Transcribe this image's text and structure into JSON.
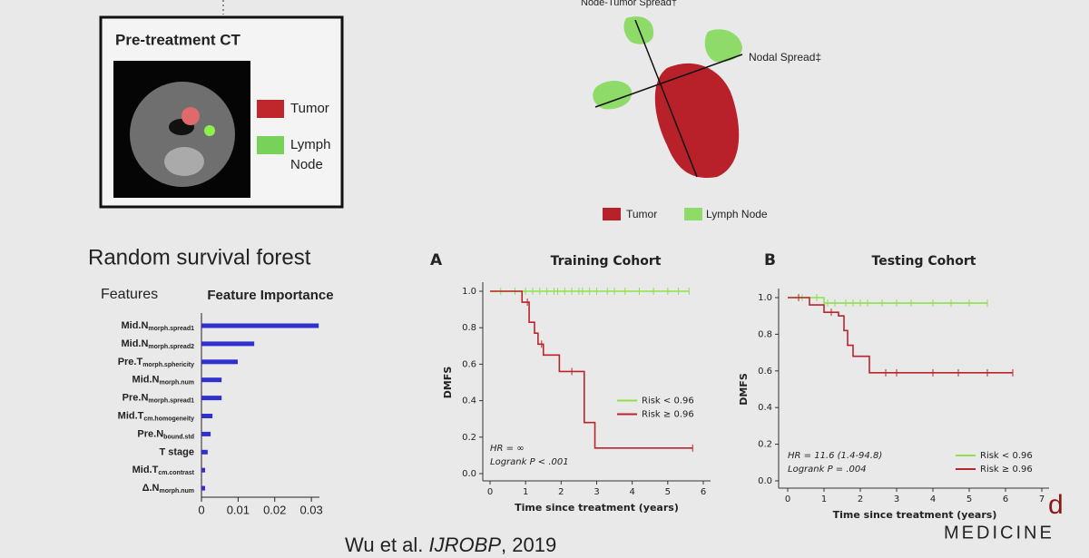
{
  "slide": {
    "ct_panel": {
      "title": "Pre-treatment CT",
      "tumor_label": "Tumor",
      "node_label_lines": [
        "Lymph",
        "Node"
      ]
    },
    "diagram": {
      "spread_labels": [
        "Node-Tumor Spread†",
        "Nodal Spread‡"
      ],
      "legend": [
        "Tumor",
        "Lymph Node"
      ]
    },
    "rsf_title": "Random survival forest",
    "features_label": "Features",
    "citation": {
      "authors": "Wu et al.",
      "journal": "IJROBP",
      "year": ", 2019"
    },
    "logo_mark": "d",
    "logo": "MEDICINE"
  },
  "chart_data": [
    {
      "type": "barh",
      "title": "Feature Importance",
      "color": "#3030cc",
      "categories": [
        "Mid.N",
        "Mid.N",
        "Pre.T",
        "Mid.N",
        "Pre.N",
        "Mid.T",
        "Pre.N",
        "T stage",
        "Mid.T",
        "Δ.N"
      ],
      "category_subscripts": [
        "morph.spread1",
        "morph.spread2",
        "morph.sphericity",
        "morph.num",
        "morph.spread1",
        "cm.homogeneity",
        "bound.std",
        null,
        "cm.contrast",
        "morph.num"
      ],
      "values": [
        0.032,
        0.0144,
        0.0099,
        0.0055,
        0.0055,
        0.003,
        0.0025,
        0.0017,
        0.001,
        0.001
      ],
      "xlim": [
        0,
        0.0322
      ],
      "xticks": [
        0,
        0.01,
        0.02,
        0.03
      ]
    },
    {
      "type": "step",
      "panel": "A",
      "title": "Training Cohort",
      "xlabel": "Time since treatment (years)",
      "ylabel": "DMFS",
      "xlim": [
        0,
        6
      ],
      "xticks": [
        0,
        1,
        2,
        3,
        4,
        5,
        6
      ],
      "ylim": [
        0,
        1
      ],
      "yticks": [
        {
          "value": 0,
          "label": "0.0"
        },
        0.2,
        0.4,
        0.6,
        0.8,
        {
          "value": 1,
          "label": "1.0"
        }
      ],
      "legend": "center right",
      "annotations": [
        "HR = ∞",
        "Logrank P < .001"
      ],
      "series": [
        {
          "name": "Risk < 0.96",
          "color": "#8ee04e",
          "x": [
            0,
            5.6
          ],
          "values": [
            1,
            1
          ],
          "censor_x": [
            0.3,
            0.7,
            1.0,
            1.2,
            1.4,
            1.6,
            1.8,
            1.9,
            2.1,
            2.3,
            2.5,
            2.6,
            2.8,
            3.0,
            3.3,
            3.5,
            3.8,
            4.2,
            4.6,
            5.0,
            5.3,
            5.6
          ]
        },
        {
          "name": "Risk ≥ 0.96",
          "color": "#b8262c",
          "x": [
            0,
            0.9,
            1.1,
            1.25,
            1.35,
            1.5,
            1.95,
            2.65,
            2.95,
            5.7
          ],
          "values": [
            1,
            0.94,
            0.83,
            0.77,
            0.71,
            0.65,
            0.56,
            0.28,
            0.14,
            0.14
          ],
          "censor_x": [
            1.05,
            1.45,
            2.3,
            5.7
          ]
        }
      ]
    },
    {
      "type": "step",
      "panel": "B",
      "title": "Testing Cohort",
      "xlabel": "Time since treatment (years)",
      "ylabel": "DMFS",
      "xlim": [
        0,
        7
      ],
      "xticks": [
        0,
        1,
        2,
        3,
        4,
        5,
        6,
        7
      ],
      "ylim": [
        0,
        1
      ],
      "yticks": [
        {
          "value": 0,
          "label": "0.0"
        },
        0.2,
        0.4,
        0.6,
        0.8,
        {
          "value": 1,
          "label": "1.0"
        }
      ],
      "legend": "lower right",
      "annotations": [
        "HR = 11.6 (1.4-94.8)",
        "Logrank P = .004"
      ],
      "series": [
        {
          "name": "Risk < 0.96",
          "color": "#8ee04e",
          "x": [
            0,
            1.0,
            5.5
          ],
          "values": [
            1,
            0.97,
            0.97
          ],
          "censor_x": [
            0.4,
            0.8,
            1.1,
            1.3,
            1.6,
            1.8,
            2.0,
            2.2,
            2.6,
            3.0,
            3.4,
            4.0,
            4.5,
            5.0,
            5.5
          ]
        },
        {
          "name": "Risk ≥ 0.96",
          "color": "#b8262c",
          "x": [
            0,
            0.6,
            1.0,
            1.4,
            1.55,
            1.65,
            1.8,
            2.25,
            6.2
          ],
          "values": [
            1,
            0.96,
            0.92,
            0.9,
            0.82,
            0.74,
            0.68,
            0.59,
            0.59
          ],
          "censor_x": [
            0.3,
            1.2,
            2.7,
            3.0,
            4.0,
            4.7,
            5.5,
            6.2
          ]
        }
      ]
    }
  ]
}
